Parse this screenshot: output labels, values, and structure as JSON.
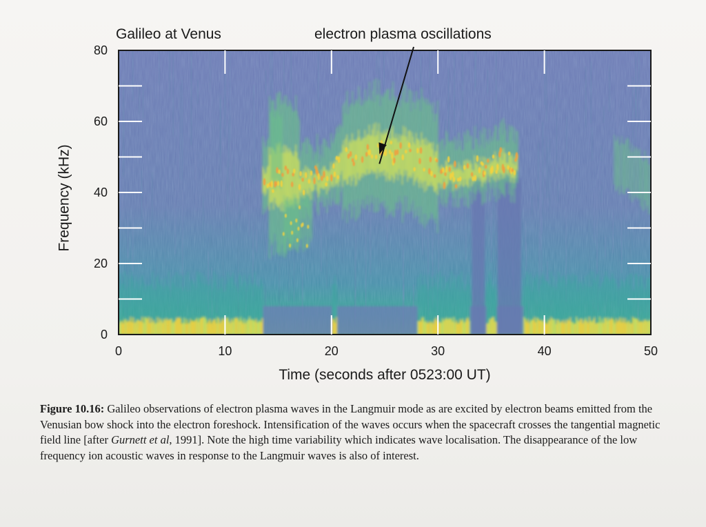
{
  "plot": {
    "title_left": "Galileo at Venus",
    "title_right": "electron plasma oscillations",
    "ylabel": "Frequency  (kHz)",
    "xlabel": "Time  (seconds after 0523:00 UT)"
  },
  "chart_data": {
    "type": "heatmap",
    "title": "Galileo at Venus",
    "annotation": "electron plasma oscillations",
    "annotation_point": {
      "x": 24.5,
      "y": 50
    },
    "xlabel": "Time  (seconds after 0523:00 UT)",
    "ylabel": "Frequency  (kHz)",
    "xlim": [
      0,
      50
    ],
    "ylim": [
      0,
      80
    ],
    "x_ticks": [
      0,
      10,
      20,
      30,
      40,
      50
    ],
    "y_ticks": [
      0,
      20,
      40,
      60,
      80
    ],
    "colormap": [
      "#6f7fb6",
      "#5a8fb0",
      "#3fa5a0",
      "#6cc08a",
      "#cfe05c",
      "#f4d23e",
      "#f0a040"
    ],
    "background_color": "#6f7fb6",
    "plasma_band": {
      "start_s": 13.5,
      "end_s": 37.5,
      "center_khz": [
        {
          "t": 13.5,
          "f": 42
        },
        {
          "t": 16,
          "f": 43
        },
        {
          "t": 19,
          "f": 42
        },
        {
          "t": 21,
          "f": 47
        },
        {
          "t": 24,
          "f": 50
        },
        {
          "t": 27,
          "f": 49
        },
        {
          "t": 29.5,
          "f": 46
        },
        {
          "t": 31,
          "f": 44
        },
        {
          "t": 33.5,
          "f": 45
        },
        {
          "t": 35,
          "f": 47
        },
        {
          "t": 37,
          "f": 47
        }
      ]
    },
    "low_frequency_band": {
      "max_khz": 3,
      "gaps_s": [
        [
          13.5,
          20
        ],
        [
          20.5,
          28
        ],
        [
          33,
          34.5
        ],
        [
          35.5,
          38
        ]
      ]
    }
  },
  "caption": {
    "label": "Figure 10.16:",
    "text_1": " Galileo observations of electron plasma waves in the Langmuir mode as are excited by electron beams emitted from the Venusian bow shock into the electron foreshock. Intensification of the waves occurs when the spacecraft crosses the tangential magnetic field line [after ",
    "ref": "Gurnett et al",
    "text_2": ", 1991]. Note the high time variability which indicates wave localisation. The disappearance of the low frequency ion acoustic waves in response to the Langmuir waves is also of interest."
  }
}
